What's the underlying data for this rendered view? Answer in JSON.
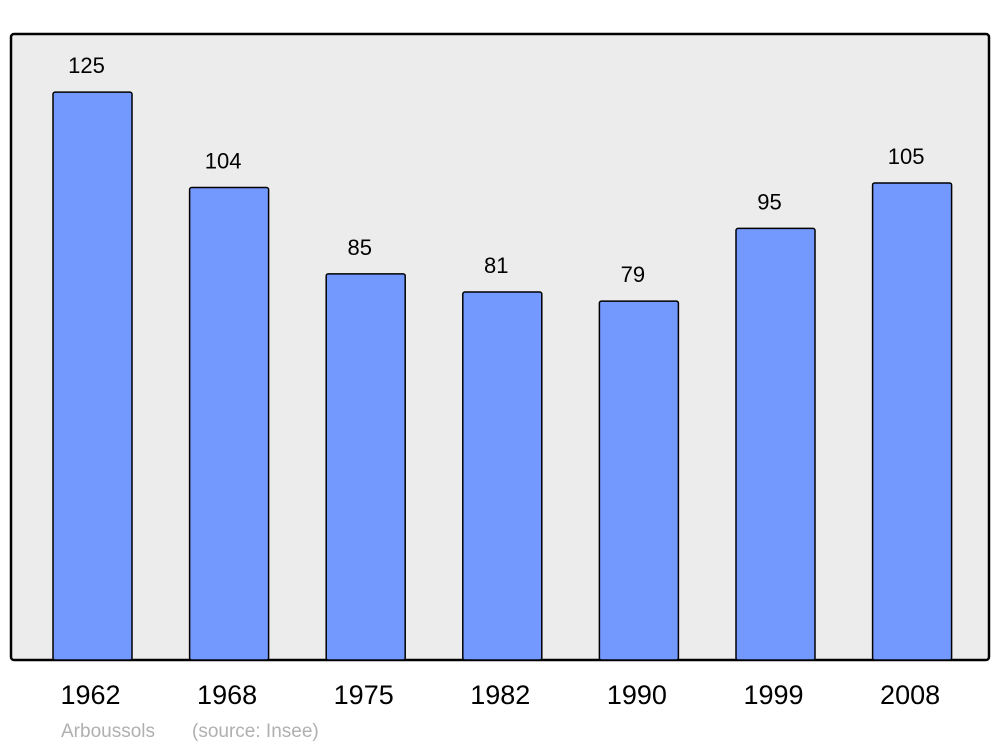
{
  "chart_data": {
    "type": "bar",
    "categories": [
      "1962",
      "1968",
      "1975",
      "1982",
      "1990",
      "1999",
      "2008"
    ],
    "values": [
      125,
      104,
      85,
      81,
      79,
      95,
      105
    ],
    "title": "",
    "xlabel": "",
    "ylabel": "",
    "ylim": [
      0,
      137.8
    ],
    "grid": false,
    "data_labels": true,
    "colors": {
      "bar": "#7399ff",
      "plot_background": "#ececec",
      "stroke": "#000000",
      "footer_text": "#b0b0b0"
    }
  },
  "footer": {
    "place": "Arboussols",
    "source": "(source: Insee)"
  }
}
